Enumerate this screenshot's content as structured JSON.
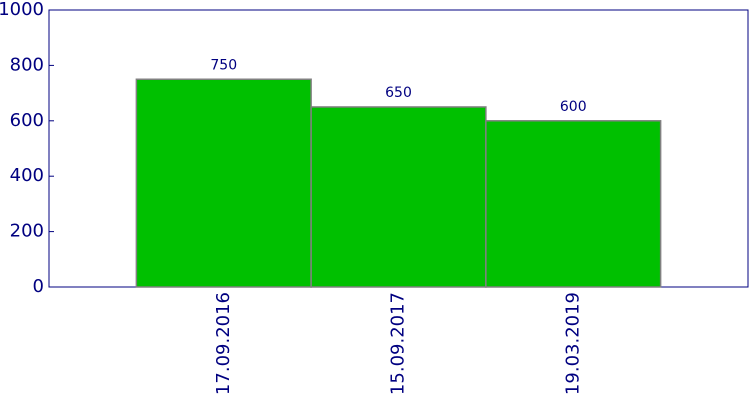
{
  "chart_data": {
    "type": "bar",
    "categories": [
      "17.09.2016",
      "15.09.2017",
      "19.03.2019"
    ],
    "values": [
      750,
      650,
      600
    ],
    "color": "#00c000",
    "edgecolor": "#808080",
    "ylim": [
      0,
      1000
    ],
    "yticks": [
      0,
      200,
      400,
      600,
      800,
      1000
    ],
    "grid": false
  }
}
